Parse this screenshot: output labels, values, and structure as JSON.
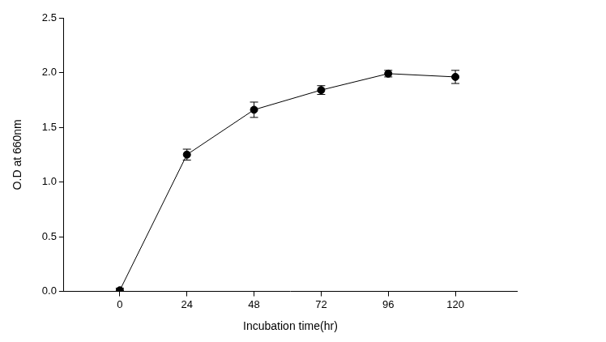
{
  "chart_data": {
    "type": "line",
    "x_label": "Incubation time(hr)",
    "y_label": "O.D at 660nm",
    "x": [
      0,
      24,
      48,
      72,
      96,
      120
    ],
    "series": [
      {
        "color": "#000000",
        "marker": "circle",
        "line_style": "solid",
        "values": [
          0.01,
          1.25,
          1.66,
          1.84,
          1.99,
          1.96
        ],
        "errors": [
          0.02,
          0.05,
          0.07,
          0.04,
          0.03,
          0.06
        ]
      }
    ],
    "xlim": [
      -20,
      142
    ],
    "xticks": [
      0,
      24,
      48,
      72,
      96,
      120
    ],
    "ylim": [
      0,
      2.5
    ],
    "yticks": [
      {
        "value": 0,
        "label": "0.0"
      },
      0.5,
      {
        "value": 1,
        "label": "1.0"
      },
      1.5,
      {
        "value": 2,
        "label": "2.0"
      },
      2.5
    ],
    "grid": false
  }
}
